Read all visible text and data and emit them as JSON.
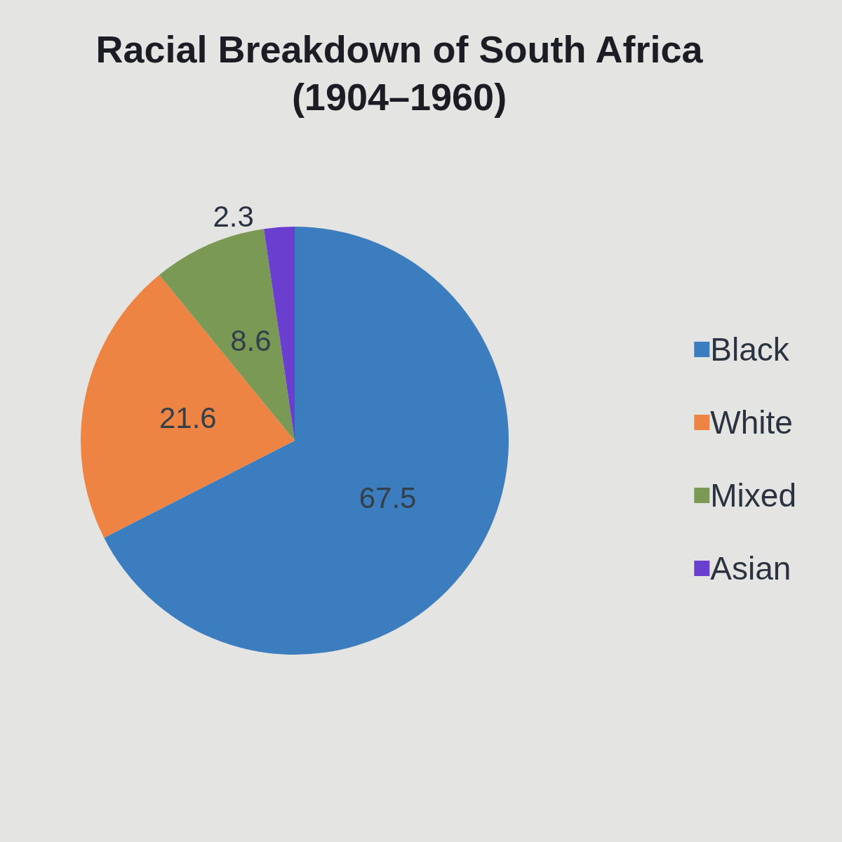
{
  "chart_data": {
    "type": "pie",
    "title": "Racial Breakdown of South Africa",
    "subtitle": "(1904–1960)",
    "categories": [
      "Black",
      "White",
      "Mixed",
      "Asian"
    ],
    "values": [
      67.5,
      21.6,
      8.6,
      2.3
    ],
    "colors": [
      "#3b7dbf",
      "#ee8443",
      "#7a9955",
      "#6a3fcf"
    ],
    "data_labels": true,
    "legend": "right"
  }
}
